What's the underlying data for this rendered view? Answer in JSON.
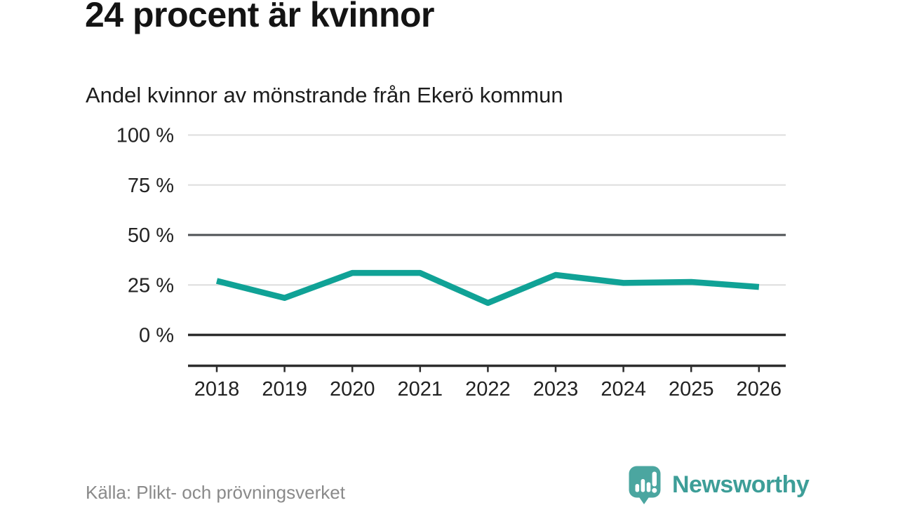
{
  "header": {
    "title": "24 procent är kvinnor",
    "subtitle": "Andel kvinnor av mönstrande från Ekerö kommun"
  },
  "chart_data": {
    "type": "line",
    "title": "Andel kvinnor av mönstrande från Ekerö kommun",
    "categories": [
      "2018",
      "2019",
      "2020",
      "2021",
      "2022",
      "2023",
      "2024",
      "2025",
      "2026"
    ],
    "series": [
      {
        "name": "Andel kvinnor",
        "values": [
          27,
          18.5,
          31,
          31,
          16,
          30,
          26,
          26.5,
          24
        ]
      }
    ],
    "ylim": [
      0,
      100
    ],
    "yticks": [
      {
        "value": 0,
        "label": "0 %"
      },
      {
        "value": 25,
        "label": "25 %"
      },
      {
        "value": 50,
        "label": "50 %"
      },
      {
        "value": 75,
        "label": "75 %"
      },
      {
        "value": 100,
        "label": "100 %"
      }
    ],
    "grid": "horizontal",
    "legend": "none",
    "line_color": "#10a296"
  },
  "footer": {
    "source": "Källa: Plikt- och prövningsverket",
    "logo_text": "Newsworthy"
  },
  "colors": {
    "line": "#10a296",
    "logo_icon": "#4BA6A0",
    "logo_text": "#3D9E98",
    "grid_light": "#dddddd",
    "grid_medium": "#4d5054",
    "axis_dark": "#2d2d2d",
    "label_text": "#222222"
  }
}
